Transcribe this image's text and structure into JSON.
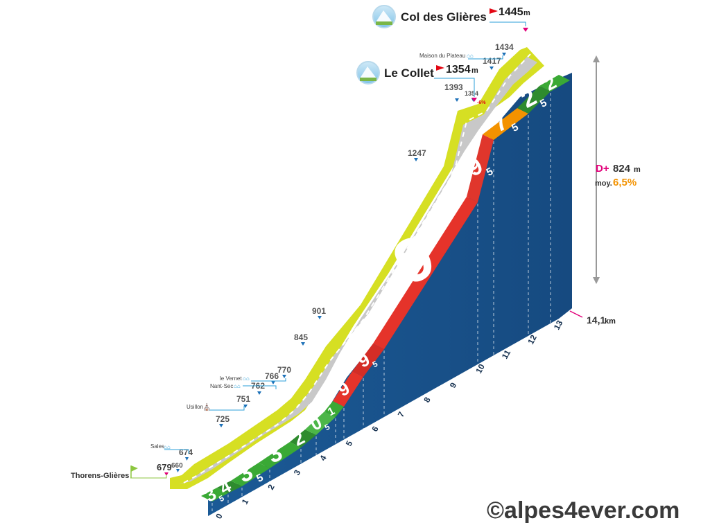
{
  "chart_data": {
    "type": "area",
    "title": "",
    "xlabel": "",
    "ylabel": "",
    "x_unit": "km",
    "y_unit": "m",
    "xlim": [
      0,
      14.1
    ],
    "km_ticks": [
      "0",
      "1",
      "2",
      "3",
      "4",
      "5",
      "6",
      "7",
      "8",
      "9",
      "10",
      "11",
      "12",
      "13"
    ],
    "segments": [
      {
        "from_km": 0,
        "to_km": 0.5,
        "gradient": "3,5",
        "main": "3",
        "sub": "5",
        "color": "#3aa935"
      },
      {
        "from_km": 0.5,
        "to_km": 1,
        "gradient": "4",
        "main": "4",
        "sub": "",
        "color": "#2e8b2e"
      },
      {
        "from_km": 1,
        "to_km": 2,
        "gradient": "3,5",
        "main": "3",
        "sub": "5",
        "color": "#3aa935"
      },
      {
        "from_km": 2,
        "to_km": 3,
        "gradient": "3",
        "main": "3",
        "sub": "",
        "color": "#3aa935"
      },
      {
        "from_km": 3,
        "to_km": 3.5,
        "gradient": "2",
        "main": "2",
        "sub": "",
        "color": "#2e8b2e"
      },
      {
        "from_km": 3.5,
        "to_km": 4,
        "gradient": "0,5",
        "main": "0",
        "sub": "5",
        "color": "#4cb648"
      },
      {
        "from_km": 4,
        "to_km": 4.2,
        "gradient": "1",
        "main": "1",
        "sub": "",
        "color": "#3aa935"
      },
      {
        "from_km": 4.2,
        "to_km": 5,
        "gradient": "9",
        "main": "9",
        "sub": "",
        "color": "#e5332a"
      },
      {
        "from_km": 5,
        "to_km": 5.6,
        "gradient": "9,5",
        "main": "9",
        "sub": "5",
        "color": "#d42d26"
      },
      {
        "from_km": 5.6,
        "to_km": 9.8,
        "gradient": "9",
        "main": "9",
        "sub": "",
        "color": "#e5332a"
      },
      {
        "from_km": 9.8,
        "to_km": 11.2,
        "gradient": "9,5",
        "main": "9",
        "sub": "5",
        "color": "#e0362c"
      },
      {
        "from_km": 11.2,
        "to_km": 12.2,
        "gradient": "7,5",
        "main": "7",
        "sub": "5",
        "color": "#f39200"
      },
      {
        "from_km": 12.2,
        "to_km": 13.3,
        "gradient": "2,5",
        "main": "2",
        "sub": "5",
        "color": "#2e8b2e"
      },
      {
        "from_km": 13.3,
        "to_km": 14.1,
        "gradient": "2",
        "main": "2",
        "sub": "",
        "color": "#3aa935"
      }
    ],
    "profile_points": [
      {
        "km": 0,
        "alt": 660
      },
      {
        "km": 0.2,
        "alt": 679
      },
      {
        "km": 0.5,
        "alt": 674
      },
      {
        "km": 1.5,
        "alt": 725
      },
      {
        "km": 2.4,
        "alt": 751
      },
      {
        "km": 2.9,
        "alt": 762
      },
      {
        "km": 3.2,
        "alt": 766
      },
      {
        "km": 3.6,
        "alt": 770
      },
      {
        "km": 5.1,
        "alt": 845
      },
      {
        "km": 5.8,
        "alt": 901
      },
      {
        "km": 9.7,
        "alt": 1247
      },
      {
        "km": 11.2,
        "alt": 1393
      },
      {
        "km": 11.5,
        "alt": 1354
      },
      {
        "km": 12.2,
        "alt": 1417
      },
      {
        "km": 12.7,
        "alt": 1434
      },
      {
        "km": 14.1,
        "alt": 1445
      }
    ]
  },
  "altitude_labels": [
    "679",
    "660",
    "674",
    "725",
    "751",
    "762",
    "766",
    "770",
    "845",
    "901",
    "1247",
    "1393",
    "1354",
    "1417",
    "1434"
  ],
  "start": {
    "name": "Thorens-Glières"
  },
  "localities": {
    "sales": "Sales",
    "usillon": "Usillon",
    "nant_sec": "Nant-Sec",
    "le_vernet": "le Vernet",
    "maison_plateau": "Maison du Plateau"
  },
  "neg_gradient": "-6%",
  "summits": {
    "le_collet": {
      "name": "Le Collet",
      "alt": "1354",
      "unit": "m"
    },
    "col": {
      "name": "Col des Glières",
      "alt": "1445",
      "unit": "m"
    }
  },
  "summary": {
    "dplus_label": "D+",
    "dplus_value": "824",
    "dplus_unit": "m",
    "moy_label": "moy.",
    "moy_value": "6,5%",
    "total_distance": "14,1",
    "total_unit": "km"
  },
  "copyright": "©alpes4ever.com",
  "colors": {
    "road": "#c8c8c8",
    "road_edge": "#d6df23",
    "side": "#1e5c96",
    "side_dark": "#174a7a",
    "flag_red": "#e30613",
    "marker_blue": "#1d71b8",
    "marker_pink": "#e2007a",
    "start_green": "#8cc63f"
  }
}
